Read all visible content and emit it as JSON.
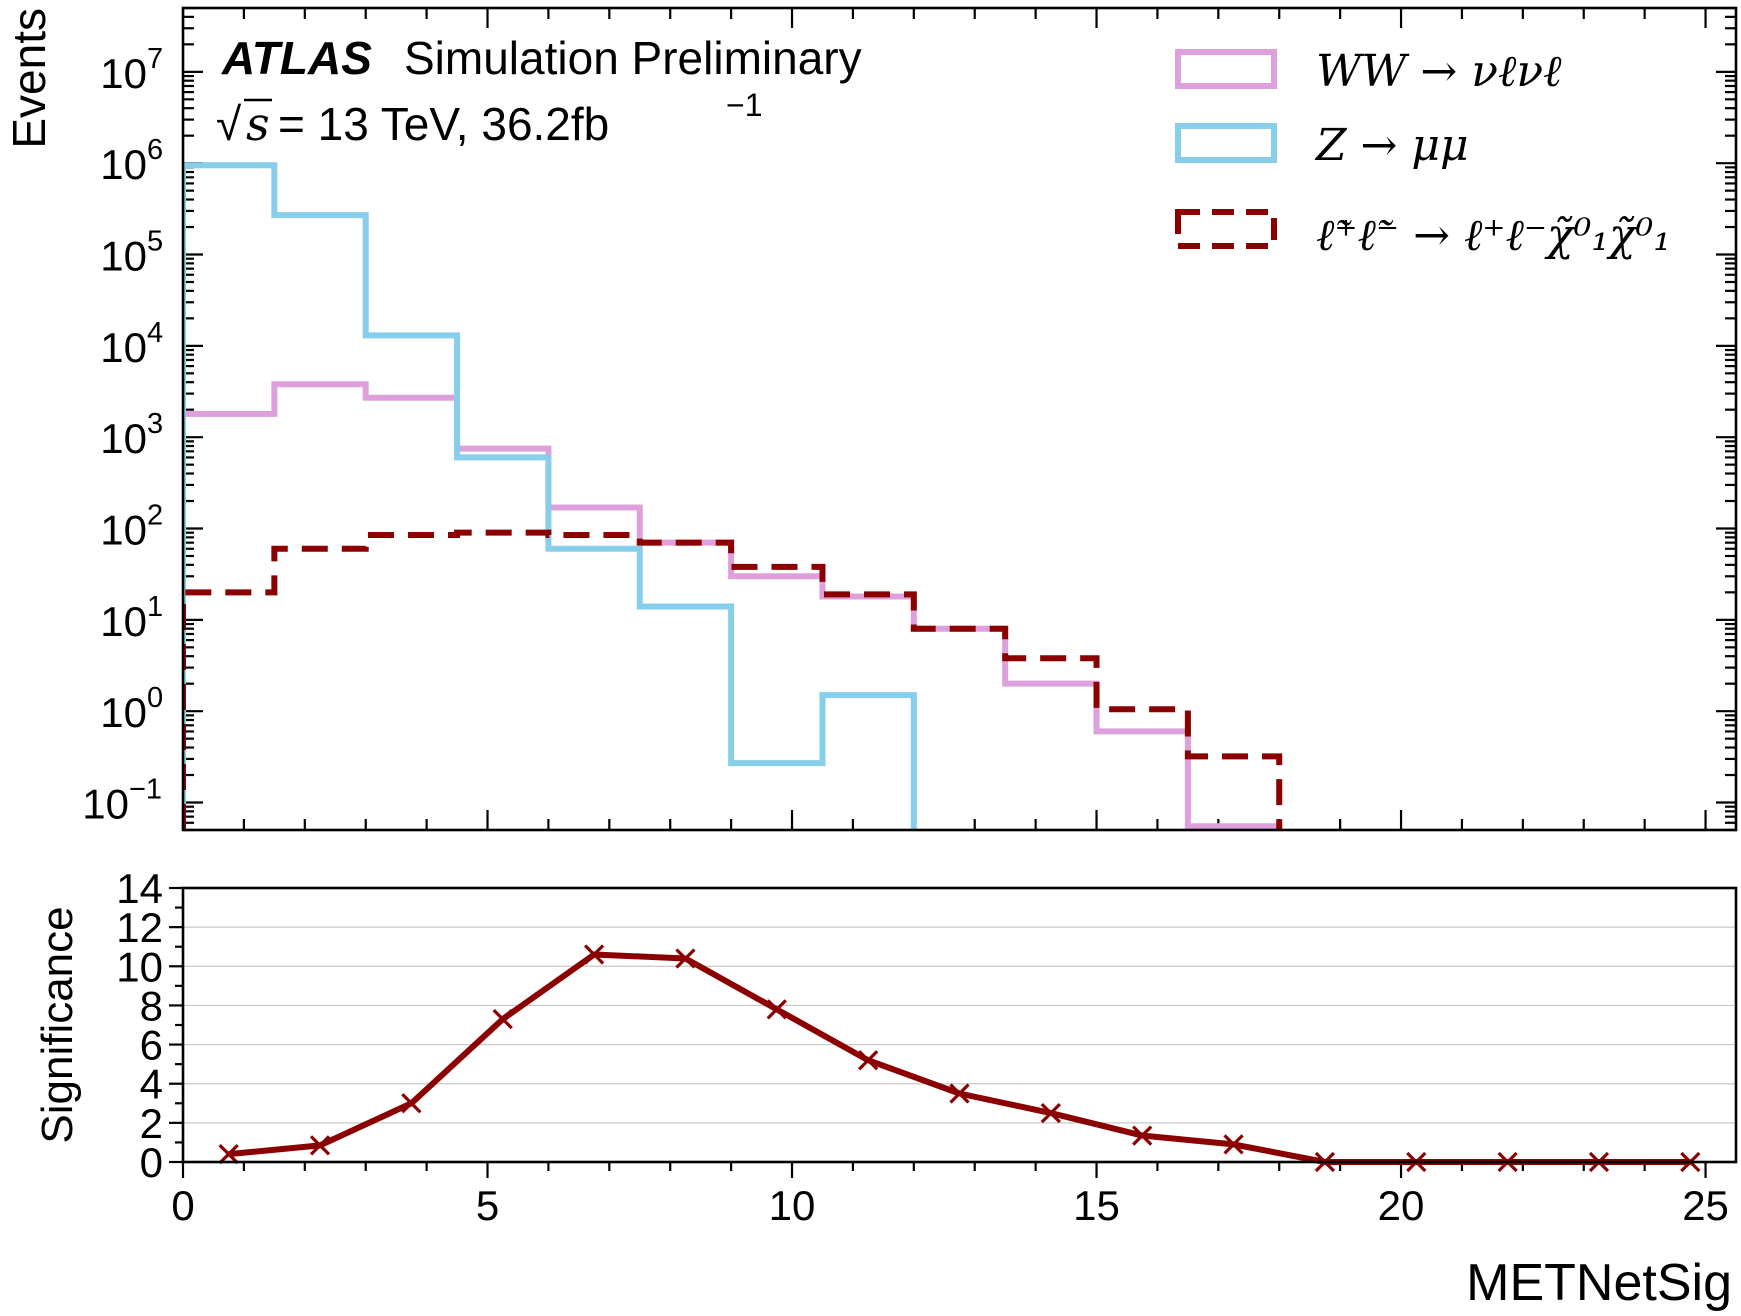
{
  "chart_data": [
    {
      "type": "histogram",
      "panel": "upper",
      "ylabel": "Events",
      "yscale": "log",
      "ylim": [
        0.05,
        50000000
      ],
      "xlim": [
        0,
        25.5
      ],
      "y_tick_labels": [
        {
          "base": "10",
          "exp": "−1",
          "value": 0.1
        },
        {
          "base": "10",
          "exp": "0",
          "value": 1
        },
        {
          "base": "10",
          "exp": "1",
          "value": 10
        },
        {
          "base": "10",
          "exp": "2",
          "value": 100
        },
        {
          "base": "10",
          "exp": "3",
          "value": 1000
        },
        {
          "base": "10",
          "exp": "4",
          "value": 10000
        },
        {
          "base": "10",
          "exp": "5",
          "value": 100000
        },
        {
          "base": "10",
          "exp": "6",
          "value": 1000000
        },
        {
          "base": "10",
          "exp": "7",
          "value": 10000000
        }
      ],
      "bin_edges": [
        0,
        1.5,
        3,
        4.5,
        6,
        7.5,
        9,
        10.5,
        12,
        13.5,
        15,
        16.5,
        18
      ],
      "series": [
        {
          "name": "WW → νℓνℓ",
          "color": "#dda0dd",
          "style": "solid",
          "values": [
            1800,
            3800,
            2700,
            750,
            170,
            70,
            30,
            18,
            8,
            2,
            0.6,
            0.055
          ]
        },
        {
          "name": "Z → μμ",
          "color": "#87ceeb",
          "style": "solid",
          "values": [
            950000,
            270000,
            13000,
            600,
            60,
            14,
            0.27,
            1.5,
            0,
            0,
            0,
            0
          ]
        },
        {
          "name": "ℓ̃⁺ℓ̃⁻ → ℓ⁺ℓ⁻χ̃⁰₁χ̃⁰₁",
          "color": "#8b0000",
          "style": "dashed",
          "values": [
            20,
            60,
            85,
            90,
            85,
            70,
            38,
            19,
            8,
            3.8,
            1.05,
            0.32
          ]
        }
      ]
    },
    {
      "type": "line",
      "panel": "lower",
      "ylabel": "Significance",
      "xlabel": "METNetSig",
      "ylim": [
        0,
        14
      ],
      "xlim": [
        0,
        25.5
      ],
      "x_ticks": [
        0,
        5,
        10,
        15,
        20,
        25
      ],
      "y_ticks": [
        0,
        2,
        4,
        6,
        8,
        10,
        12,
        14
      ],
      "series": [
        {
          "name": "Significance",
          "color": "#8b0000",
          "marker": "x",
          "x": [
            0.75,
            2.25,
            3.75,
            5.25,
            6.75,
            8.25,
            9.75,
            11.25,
            12.75,
            14.25,
            15.75,
            17.25,
            18.75,
            20.25,
            21.75,
            23.25,
            24.75
          ],
          "y": [
            0.4,
            0.85,
            3.0,
            7.3,
            10.6,
            10.4,
            7.8,
            5.2,
            3.5,
            2.5,
            1.35,
            0.9,
            0.0,
            0.0,
            0.0,
            0.0,
            0.0
          ]
        }
      ]
    }
  ],
  "labels": {
    "atlas": "ATLAS",
    "simulation": "Simulation Preliminary",
    "sqrt": "√",
    "s_var": "s",
    "energy_rest": " = 13 TeV, 36.2fb",
    "lumi_exp": "−1"
  },
  "colors": {
    "ww": "#dda0dd",
    "z": "#87ceeb",
    "signal": "#8b0000"
  }
}
